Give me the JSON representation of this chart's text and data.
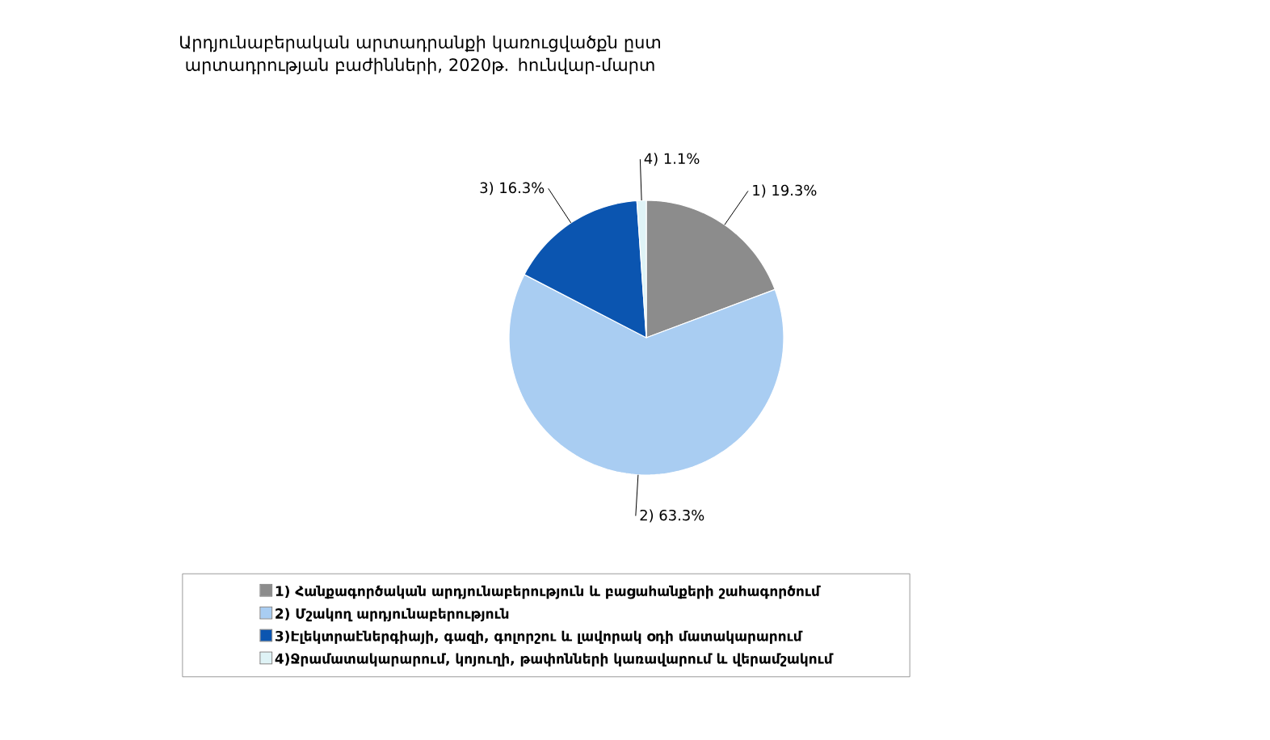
{
  "chart_data": {
    "type": "pie",
    "title": "Արդյունաբերական արտադրանքի կառուցվածքն ըստ արտադրության բաժինների, 2020թ. հունվար-մարտ",
    "categories": [
      "1) Հանքագործական արդյունաբերություն և բացահանքերի շահագործում",
      "2) Մշակող արդյունաբերություն",
      "3)Էլեկտրաէներգիայի, գազի, գոլորշու և լավորակ օդի մատակարարում",
      "4)Ջրամատակարարում, կոյուղի, թափոնների կառավարում և վերամշակում"
    ],
    "values": [
      19.3,
      63.3,
      16.3,
      1.1
    ],
    "value_labels": [
      "1) 19.3%",
      "2) 63.3%",
      "3) 16.3%",
      "4) 1.1%"
    ],
    "colors": [
      "#8c8c8c",
      "#a9cdf2",
      "#0b55b0",
      "#dff3f6"
    ],
    "legend": "bottom"
  }
}
